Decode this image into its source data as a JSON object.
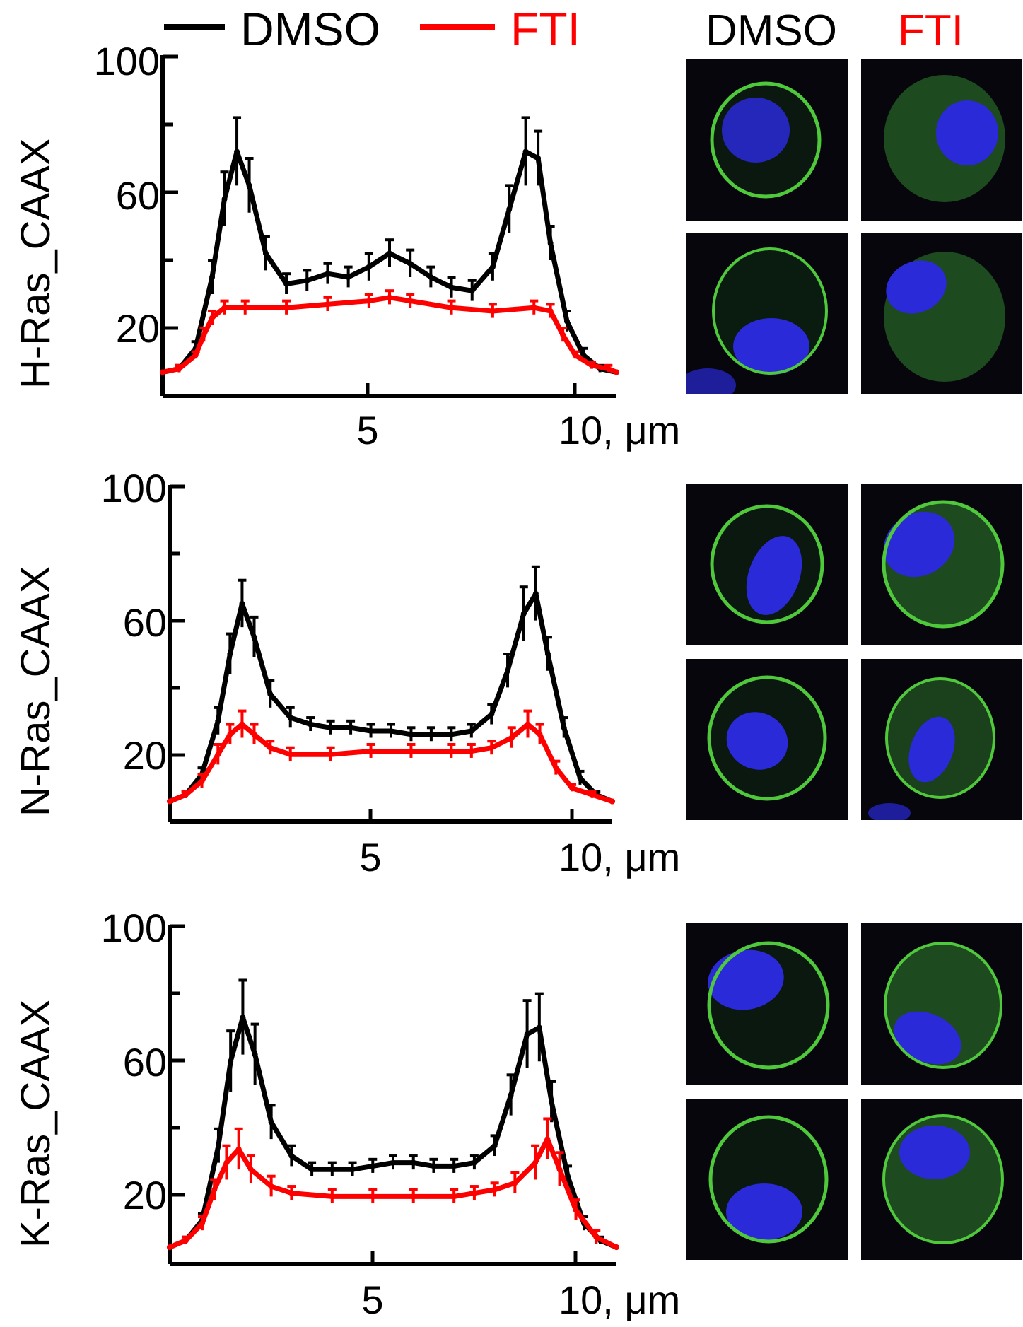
{
  "legend": {
    "items": [
      {
        "label": "DMSO",
        "color": "#000000"
      },
      {
        "label": "FTI",
        "color": "#ff0000"
      }
    ]
  },
  "micrograph_header": {
    "dmso_label": "DMSO",
    "fti_label": "FTI",
    "dmso_color": "#000000",
    "fti_color": "#ff0000"
  },
  "colors": {
    "membrane": "#4fc83c",
    "nucleus": "#2a2ad8",
    "background": "#06060c"
  },
  "chart_data": [
    {
      "type": "line",
      "ylabel": "H-Ras_CAAX",
      "xlabel": "10, μm",
      "x_ticks": [
        "5",
        "10, μm"
      ],
      "y_ticks": [
        "100",
        "60",
        "20"
      ],
      "xlim": [
        0,
        11
      ],
      "ylim": [
        0,
        100
      ],
      "series": [
        {
          "name": "DMSO",
          "color": "#000000",
          "x": [
            0,
            0.4,
            0.8,
            1.2,
            1.5,
            1.8,
            2.1,
            2.5,
            3.0,
            3.5,
            4.0,
            4.5,
            5.0,
            5.5,
            6.0,
            6.5,
            7.0,
            7.5,
            8.0,
            8.4,
            8.8,
            9.1,
            9.4,
            9.8,
            10.2,
            10.6,
            11.0
          ],
          "y": [
            7,
            8,
            14,
            35,
            58,
            72,
            62,
            42,
            33,
            34,
            36,
            35,
            38,
            42,
            39,
            35,
            32,
            31,
            38,
            55,
            72,
            70,
            45,
            22,
            12,
            8,
            7
          ],
          "err": [
            0,
            1,
            2,
            5,
            8,
            10,
            8,
            5,
            3,
            3,
            3,
            3,
            4,
            4,
            4,
            3,
            3,
            3,
            4,
            7,
            10,
            8,
            5,
            3,
            2,
            1,
            0
          ]
        },
        {
          "name": "FTI",
          "color": "#ff0000",
          "x": [
            0,
            0.4,
            0.8,
            1.0,
            1.2,
            1.5,
            2.0,
            3.0,
            4.0,
            5.0,
            5.5,
            6.0,
            7.0,
            8.0,
            9.0,
            9.4,
            9.7,
            10.0,
            10.4,
            10.8,
            11.0
          ],
          "y": [
            7,
            8,
            12,
            18,
            23,
            26,
            26,
            26,
            27,
            28,
            29,
            28,
            26,
            25,
            26,
            25,
            18,
            12,
            9,
            8,
            7
          ],
          "err": [
            0,
            1,
            1,
            2,
            2,
            2,
            2,
            2,
            2,
            2,
            2,
            2,
            2,
            2,
            2,
            2,
            2,
            1,
            1,
            1,
            0
          ]
        }
      ]
    },
    {
      "type": "line",
      "ylabel": "N-Ras_CAAX",
      "xlabel": "10, μm",
      "x_ticks": [
        "5",
        "10, μm"
      ],
      "y_ticks": [
        "100",
        "60",
        "20"
      ],
      "xlim": [
        0,
        11
      ],
      "ylim": [
        0,
        100
      ],
      "series": [
        {
          "name": "DMSO",
          "color": "#000000",
          "x": [
            0,
            0.4,
            0.8,
            1.2,
            1.5,
            1.8,
            2.1,
            2.5,
            3.0,
            3.5,
            4.0,
            4.5,
            5.0,
            5.5,
            6.0,
            6.5,
            7.0,
            7.5,
            8.0,
            8.4,
            8.8,
            9.1,
            9.4,
            9.8,
            10.2,
            10.6,
            11.0
          ],
          "y": [
            6,
            8,
            14,
            30,
            50,
            65,
            55,
            38,
            31,
            29,
            28,
            28,
            27,
            27,
            26,
            26,
            26,
            27,
            32,
            45,
            62,
            68,
            50,
            28,
            13,
            8,
            6
          ],
          "err": [
            0,
            1,
            2,
            4,
            6,
            7,
            6,
            4,
            3,
            2,
            2,
            2,
            2,
            2,
            2,
            2,
            2,
            2,
            3,
            5,
            8,
            8,
            5,
            3,
            2,
            1,
            0
          ]
        },
        {
          "name": "FTI",
          "color": "#ff0000",
          "x": [
            0,
            0.4,
            0.8,
            1.2,
            1.5,
            1.8,
            2.1,
            2.5,
            3.0,
            4.0,
            5.0,
            6.0,
            7.0,
            7.5,
            8.0,
            8.5,
            8.9,
            9.2,
            9.6,
            10.0,
            10.5,
            11.0
          ],
          "y": [
            6,
            8,
            12,
            20,
            26,
            29,
            26,
            22,
            20,
            20,
            21,
            21,
            21,
            21,
            22,
            25,
            29,
            26,
            16,
            10,
            8,
            6
          ],
          "err": [
            0,
            1,
            2,
            3,
            3,
            4,
            3,
            2,
            2,
            2,
            2,
            2,
            2,
            2,
            2,
            3,
            4,
            3,
            2,
            1,
            1,
            0
          ]
        }
      ]
    },
    {
      "type": "line",
      "ylabel": "K-Ras_CAAX",
      "xlabel": "10, μm",
      "x_ticks": [
        "5",
        "10, μm"
      ],
      "y_ticks": [
        "100",
        "60",
        "20"
      ],
      "xlim": [
        0,
        11
      ],
      "ylim": [
        0,
        100
      ],
      "series": [
        {
          "name": "DMSO",
          "color": "#000000",
          "x": [
            0,
            0.4,
            0.8,
            1.2,
            1.5,
            1.8,
            2.1,
            2.5,
            3.0,
            3.5,
            4.0,
            4.5,
            5.0,
            5.5,
            6.0,
            6.5,
            7.0,
            7.5,
            8.0,
            8.4,
            8.8,
            9.1,
            9.4,
            9.8,
            10.2,
            10.6,
            11.0
          ],
          "y": [
            5,
            7,
            13,
            35,
            60,
            73,
            62,
            42,
            32,
            28,
            28,
            28,
            29,
            30,
            30,
            29,
            29,
            30,
            35,
            50,
            68,
            70,
            48,
            26,
            12,
            7,
            5
          ],
          "err": [
            0,
            1,
            2,
            5,
            9,
            11,
            9,
            5,
            3,
            2,
            2,
            2,
            2,
            2,
            2,
            2,
            2,
            2,
            3,
            6,
            10,
            10,
            6,
            3,
            2,
            1,
            0
          ]
        },
        {
          "name": "FTI",
          "color": "#ff0000",
          "x": [
            0,
            0.4,
            0.8,
            1.1,
            1.4,
            1.7,
            2.0,
            2.5,
            3.0,
            4.0,
            5.0,
            6.0,
            7.0,
            7.5,
            8.0,
            8.5,
            9.0,
            9.3,
            9.6,
            10.0,
            10.5,
            11.0
          ],
          "y": [
            5,
            7,
            12,
            22,
            30,
            34,
            28,
            23,
            21,
            20,
            20,
            20,
            20,
            21,
            22,
            24,
            30,
            37,
            28,
            16,
            8,
            5
          ],
          "err": [
            0,
            1,
            2,
            3,
            5,
            6,
            4,
            3,
            2,
            2,
            2,
            2,
            2,
            2,
            2,
            3,
            5,
            6,
            5,
            3,
            2,
            0
          ]
        }
      ]
    }
  ]
}
